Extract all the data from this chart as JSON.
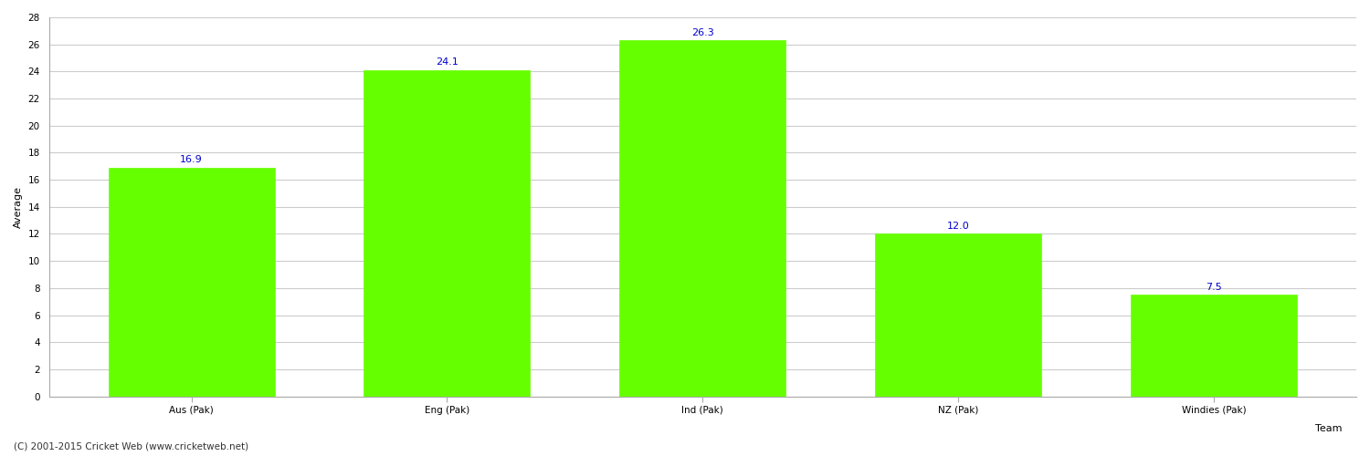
{
  "categories": [
    "Aus (Pak)",
    "Eng (Pak)",
    "Ind (Pak)",
    "NZ (Pak)",
    "Windies (Pak)"
  ],
  "values": [
    16.9,
    24.1,
    26.3,
    12.0,
    7.5
  ],
  "bar_color": "#66ff00",
  "bar_edge_color": "#66ff00",
  "value_label_color": "#0000cc",
  "value_label_fontsize": 8,
  "title": "",
  "xlabel": "Team",
  "ylabel": "Average",
  "ylim": [
    0,
    28
  ],
  "yticks": [
    0,
    2,
    4,
    6,
    8,
    10,
    12,
    14,
    16,
    18,
    20,
    22,
    24,
    26,
    28
  ],
  "grid_color": "#cccccc",
  "background_color": "#ffffff",
  "tick_label_fontsize": 7.5,
  "axis_label_fontsize": 8,
  "footer_text": "(C) 2001-2015 Cricket Web (www.cricketweb.net)",
  "footer_fontsize": 7.5,
  "footer_color": "#333333",
  "bar_width": 0.65
}
